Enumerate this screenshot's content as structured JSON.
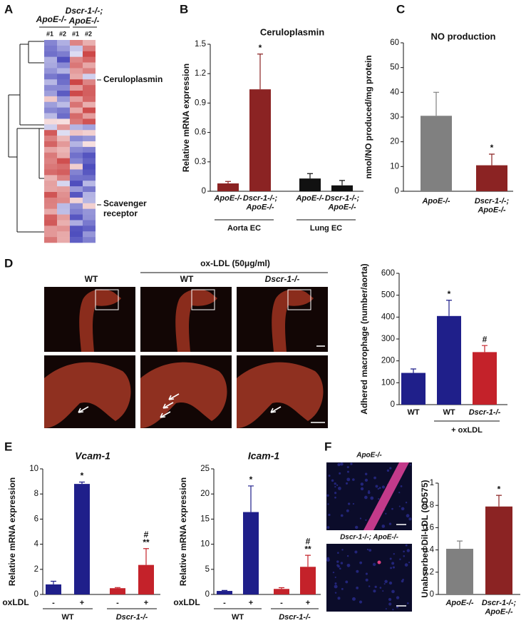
{
  "figure": {
    "panel_labels": [
      "A",
      "B",
      "C",
      "D",
      "E",
      "F"
    ],
    "heatmap": {
      "col_groups": [
        "ApoE-/-",
        "Dscr-1-/-; ApoE-/-"
      ],
      "replicates": [
        "#1",
        "#2",
        "#1",
        "#2"
      ],
      "row_labels": [
        "Ceruloplasmin",
        "Scavenger receptor"
      ]
    },
    "micrographs": {
      "treatment": "ox-LDL (50μg/ml)",
      "columns": [
        "WT",
        "WT",
        "Dscr-1-/-"
      ]
    },
    "uptake_images": [
      "ApoE-/-",
      "Dscr-1-/-; ApoE-/-"
    ]
  },
  "chart_data": [
    {
      "type": "bar",
      "title": "Ceruloplasmin",
      "ylabel": "Relative mRNA expression",
      "ylim": [
        0,
        1.5
      ],
      "yticks": [
        0,
        0.3,
        0.6,
        0.9,
        1.2,
        1.5
      ],
      "groups": [
        {
          "label": "Aorta EC",
          "categories": [
            "ApoE-/-",
            "Dscr-1-/-; ApoE-/-"
          ],
          "values": [
            0.08,
            1.04
          ],
          "errors": [
            0.02,
            0.36
          ],
          "colors": [
            "#8b2323",
            "#8b2323"
          ],
          "significance": [
            null,
            [
              "*"
            ]
          ]
        },
        {
          "label": "Lung EC",
          "categories": [
            "ApoE-/-",
            "Dscr-1-/-; ApoE-/-"
          ],
          "values": [
            0.13,
            0.06
          ],
          "errors": [
            0.05,
            0.05
          ],
          "colors": [
            "#111111",
            "#111111"
          ],
          "significance": [
            null,
            null
          ]
        }
      ]
    },
    {
      "type": "bar",
      "title": "NO production",
      "ylabel": "nmol/NO produced/mg protein",
      "ylim": [
        0,
        60
      ],
      "yticks": [
        0,
        10,
        20,
        30,
        40,
        50,
        60
      ],
      "groups": [
        {
          "categories": [
            "ApoE-/-",
            "Dscr-1-/-; ApoE-/-"
          ],
          "values": [
            30.5,
            10.5
          ],
          "errors": [
            9.5,
            4.5
          ],
          "colors": [
            "#808080",
            "#8b2323"
          ],
          "significance": [
            null,
            [
              "*"
            ]
          ]
        }
      ]
    },
    {
      "type": "bar",
      "ylabel": "Adhered macrophage (number/aorta)",
      "ylim": [
        0,
        600
      ],
      "yticks": [
        0,
        100,
        200,
        300,
        400,
        500,
        600
      ],
      "groups": [
        {
          "categories": [
            "WT"
          ],
          "values": [
            145
          ],
          "errors": [
            18
          ],
          "colors": [
            "#1f1f8a"
          ],
          "significance": [
            null
          ]
        },
        {
          "label": "+ oxLDL",
          "categories": [
            "WT",
            "Dscr-1-/-"
          ],
          "values": [
            405,
            240
          ],
          "errors": [
            72,
            30
          ],
          "colors": [
            "#1f1f8a",
            "#c4222a"
          ],
          "significance": [
            [
              "*"
            ],
            [
              "#"
            ]
          ]
        }
      ]
    },
    {
      "type": "bar",
      "title": "Vcam-1",
      "ylabel": "Relative mRNA expression",
      "x_label": "oxLDL",
      "ylim": [
        0,
        10
      ],
      "yticks": [
        0,
        2,
        4,
        6,
        8,
        10
      ],
      "groups": [
        {
          "label": "WT",
          "categories": [
            "-",
            "+"
          ],
          "values": [
            0.8,
            8.8
          ],
          "errors": [
            0.25,
            0.15
          ],
          "colors": [
            "#1f1f8a",
            "#1f1f8a"
          ],
          "significance": [
            null,
            [
              "*"
            ]
          ]
        },
        {
          "label": "Dscr-1-/-",
          "categories": [
            "-",
            "+"
          ],
          "values": [
            0.5,
            2.35
          ],
          "errors": [
            0.05,
            1.3
          ],
          "colors": [
            "#c4222a",
            "#c4222a"
          ],
          "significance": [
            null,
            [
              "#",
              "**"
            ]
          ]
        }
      ]
    },
    {
      "type": "bar",
      "title": "Icam-1",
      "ylabel": "Relative mRNA expression",
      "x_label": "oxLDL",
      "ylim": [
        0,
        25
      ],
      "yticks": [
        0,
        5,
        10,
        15,
        20,
        25
      ],
      "groups": [
        {
          "label": "WT",
          "categories": [
            "-",
            "+"
          ],
          "values": [
            0.7,
            16.4
          ],
          "errors": [
            0.1,
            5.2
          ],
          "colors": [
            "#1f1f8a",
            "#1f1f8a"
          ],
          "significance": [
            null,
            [
              "*"
            ]
          ]
        },
        {
          "label": "Dscr-1-/-",
          "categories": [
            "-",
            "+"
          ],
          "values": [
            1.1,
            5.5
          ],
          "errors": [
            0.25,
            2.3
          ],
          "colors": [
            "#c4222a",
            "#c4222a"
          ],
          "significance": [
            null,
            [
              "#",
              "**"
            ]
          ]
        }
      ]
    },
    {
      "type": "bar",
      "ylabel": "Unabsorbed Dil-LDL (OD575)",
      "ylim": [
        0,
        1
      ],
      "yticks": [
        0,
        0.2,
        0.4,
        0.6,
        0.8,
        1
      ],
      "groups": [
        {
          "categories": [
            "ApoE-/-",
            "Dscr-1-/-; ApoE-/-"
          ],
          "values": [
            0.41,
            0.79
          ],
          "errors": [
            0.07,
            0.1
          ],
          "colors": [
            "#808080",
            "#8b2323"
          ],
          "significance": [
            null,
            [
              "*"
            ]
          ]
        }
      ]
    }
  ]
}
